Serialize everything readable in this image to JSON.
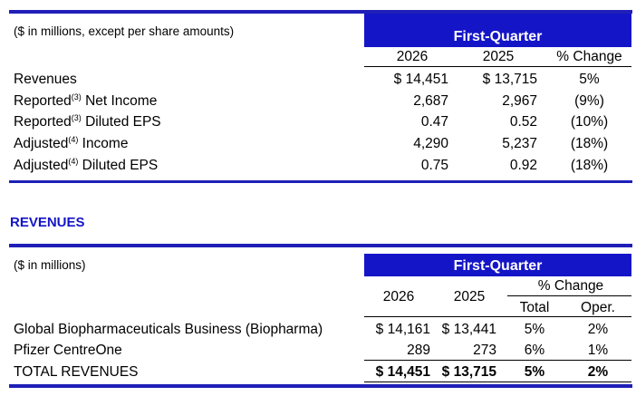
{
  "summary": {
    "note": "($ in millions, except per share amounts)",
    "band": "First-Quarter",
    "headers": {
      "y1": "2026",
      "y2": "2025",
      "chg": "% Change"
    },
    "rows": [
      {
        "label": "Revenues",
        "sup": "",
        "suffix": "",
        "v1": "$ 14,451",
        "v2": "$ 13,715",
        "chg": "5%"
      },
      {
        "label": "Reported",
        "sup": "(3)",
        "suffix": " Net Income",
        "v1": "2,687",
        "v2": "2,967",
        "chg": "(9%)"
      },
      {
        "label": "Reported",
        "sup": "(3)",
        "suffix": " Diluted EPS",
        "v1": "0.47",
        "v2": "0.52",
        "chg": "(10%)"
      },
      {
        "label": "Adjusted",
        "sup": "(4)",
        "suffix": " Income",
        "v1": "4,290",
        "v2": "5,237",
        "chg": "(18%)"
      },
      {
        "label": "Adjusted",
        "sup": "(4)",
        "suffix": " Diluted EPS",
        "v1": "0.75",
        "v2": "0.92",
        "chg": "(18%)"
      }
    ]
  },
  "revenues": {
    "title": "REVENUES",
    "note": "($ in millions)",
    "band": "First-Quarter",
    "headers": {
      "y1": "2026",
      "y2": "2025",
      "chg": "% Change",
      "total": "Total",
      "oper": "Oper."
    },
    "rows": [
      {
        "label": "Global Biopharmaceuticals Business (Biopharma)",
        "v1": "$ 14,161",
        "v2": "$ 13,441",
        "total": "5%",
        "oper": "2%"
      },
      {
        "label": "Pfizer CentreOne",
        "v1": "289",
        "v2": "273",
        "total": "6%",
        "oper": "1%"
      }
    ],
    "total_row": {
      "label": "TOTAL REVENUES",
      "v1": "$ 14,451",
      "v2": "$ 13,715",
      "total": "5%",
      "oper": "2%"
    }
  },
  "colors": {
    "brand_blue": "#1515c8",
    "rule_blue": "#1f1fb8"
  }
}
